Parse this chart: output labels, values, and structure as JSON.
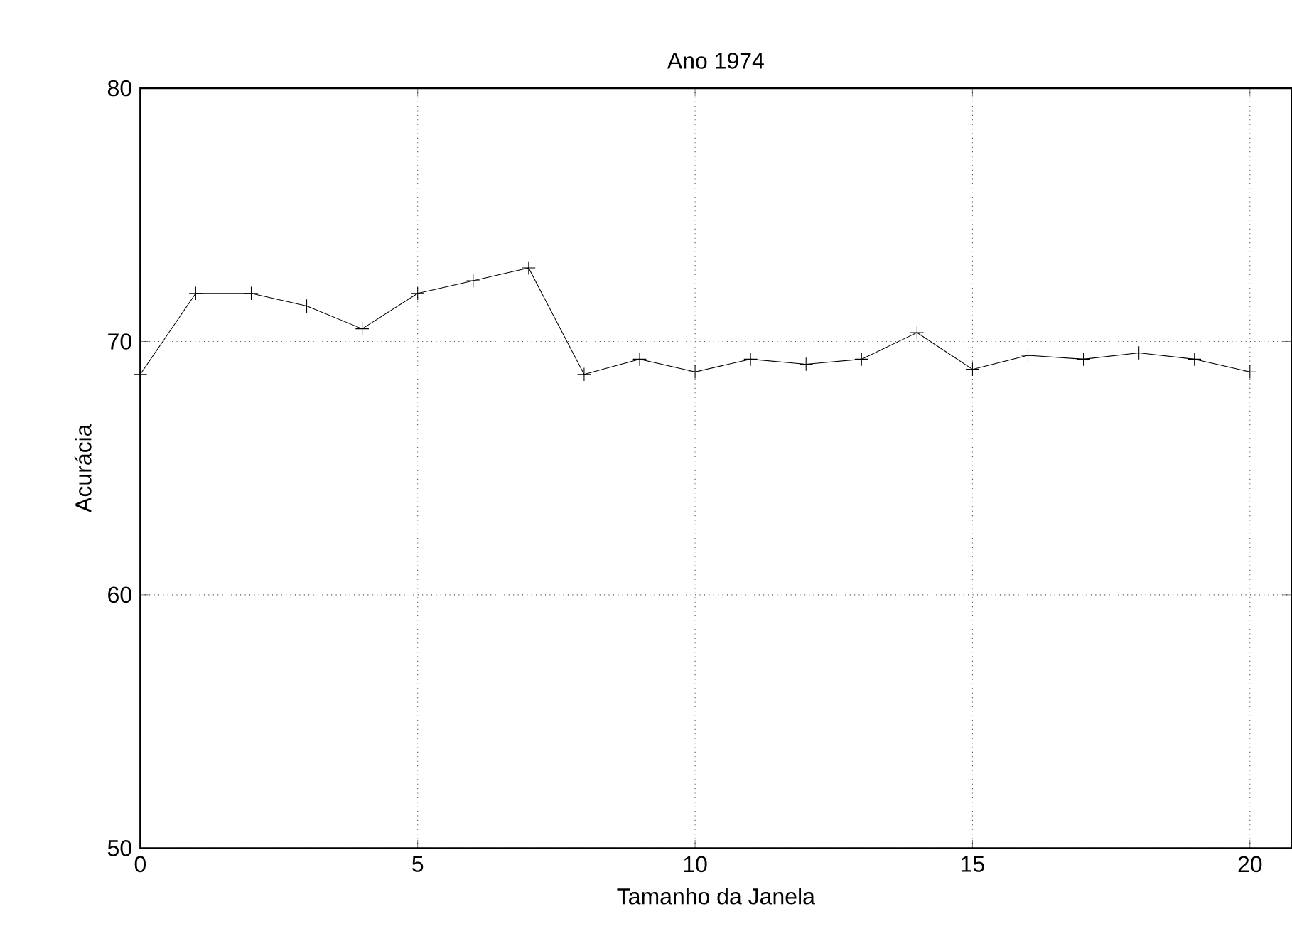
{
  "chart_data": {
    "type": "line",
    "title": "Ano 1974",
    "xlabel": "Tamanho da Janela",
    "ylabel": "Acurácia",
    "x": [
      0,
      1,
      2,
      3,
      4,
      5,
      6,
      7,
      8,
      9,
      10,
      11,
      12,
      13,
      14,
      15,
      16,
      17,
      18,
      19,
      20
    ],
    "series": [
      {
        "color": "#000000",
        "values": [
          68.7,
          71.9,
          71.9,
          71.4,
          70.5,
          71.9,
          72.4,
          72.9,
          68.7,
          69.3,
          68.8,
          69.3,
          69.1,
          69.3,
          70.35,
          68.9,
          69.45,
          69.3,
          69.55,
          69.3,
          68.8
        ]
      }
    ],
    "xlim": [
      0,
      20.75
    ],
    "ylim": [
      50,
      80
    ],
    "xticks": [
      0,
      5,
      10,
      15,
      20
    ],
    "yticks": [
      50,
      60,
      70,
      80
    ],
    "grid": true,
    "marker": "cross",
    "line_style": "solid"
  }
}
